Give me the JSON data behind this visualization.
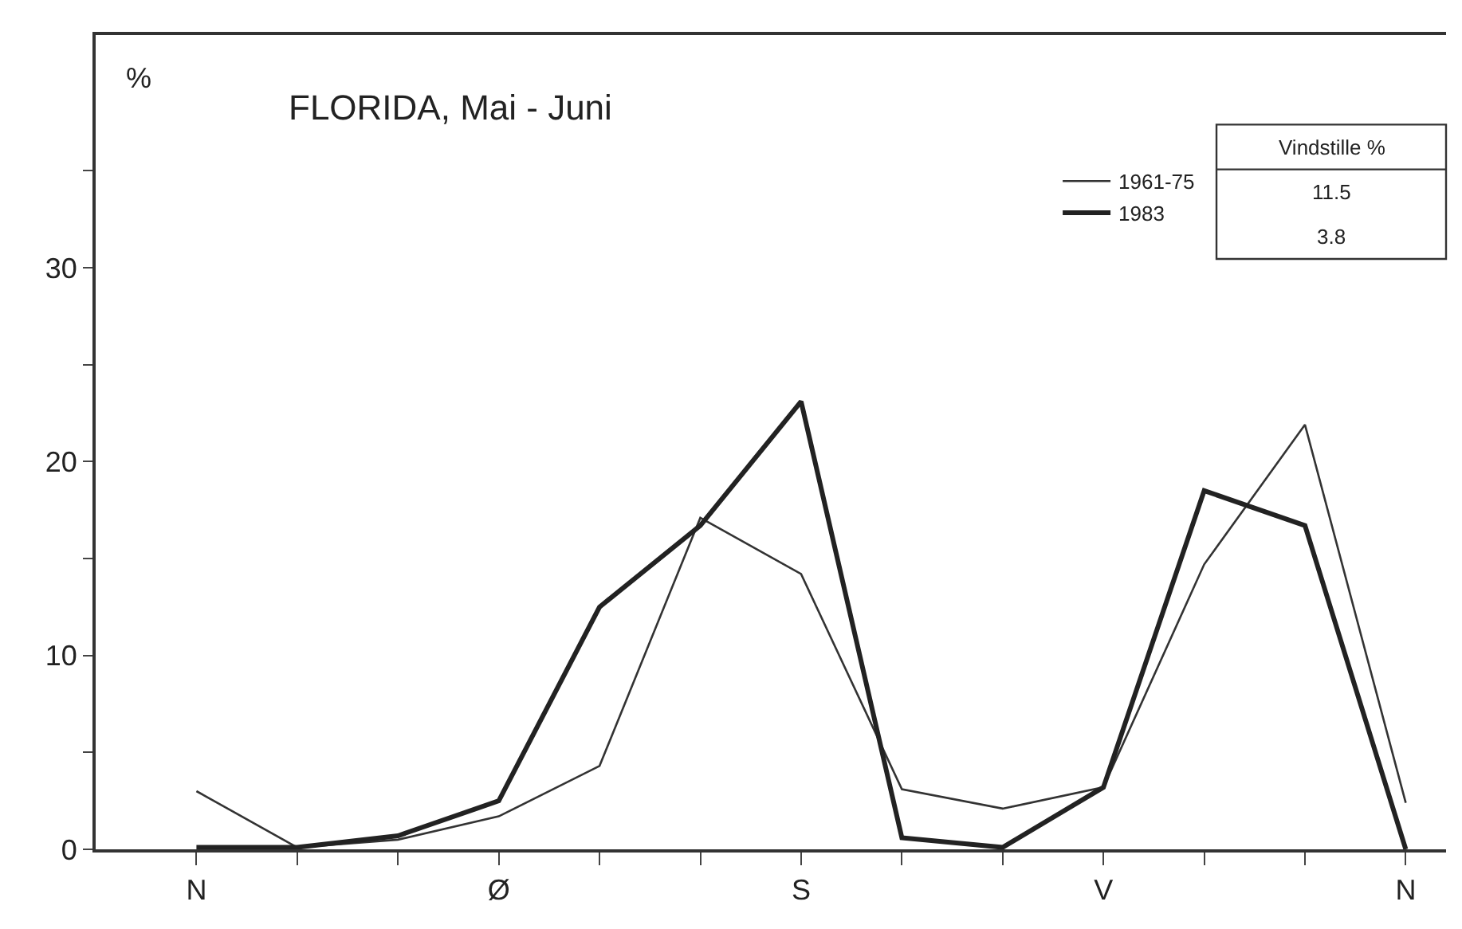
{
  "chart_data": {
    "type": "line",
    "title": "FLORIDA, Mai - Juni",
    "ylabel": "%",
    "categories": [
      "N",
      null,
      null,
      "Ø",
      null,
      null,
      "S",
      null,
      null,
      "V",
      null,
      null,
      "N"
    ],
    "series": [
      {
        "name": "1961-75",
        "color": "#333333",
        "values": [
          3,
          0.1,
          0.5,
          1.7,
          4.3,
          17.1,
          14.2,
          3.1,
          2.1,
          3.2,
          14.7,
          21.9,
          2.4
        ]
      },
      {
        "name": "1983",
        "color": "#222222",
        "values": [
          0.1,
          0.1,
          0.7,
          2.5,
          12.5,
          16.7,
          23.1,
          0.6,
          0.1,
          3.2,
          18.5,
          16.7,
          0
        ]
      }
    ],
    "ylim": [
      0,
      42
    ],
    "yticks": [
      0,
      {
        "value": 5,
        "label": null
      },
      10,
      {
        "value": 15,
        "label": null
      },
      20,
      {
        "value": 25,
        "label": null
      },
      30,
      {
        "value": 35,
        "label": null
      }
    ],
    "annotations": [
      "Vindstille %",
      "11.5",
      "3.8"
    ],
    "legend": "top right",
    "marker": "none",
    "line_style": "solid"
  }
}
